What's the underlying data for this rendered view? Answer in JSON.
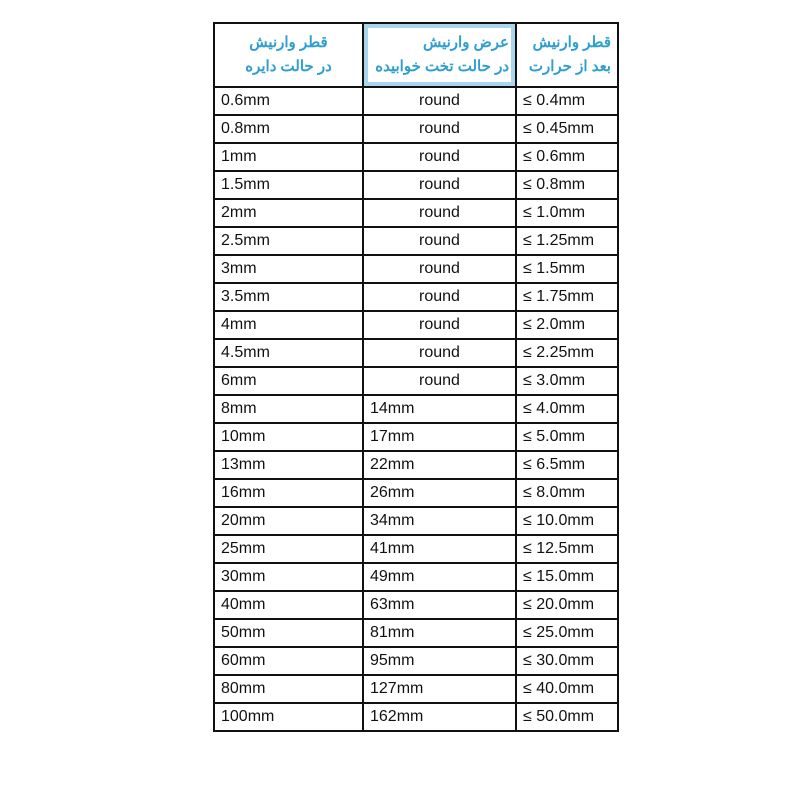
{
  "headers": [
    {
      "line1": "قطر وارنیش",
      "line2": "در حالت دایره"
    },
    {
      "line1": "عرض وارنیش",
      "line2": "در حالت تخت خوابیده"
    },
    {
      "line1": "قطر وارنیش",
      "line2": "بعد از حرارت"
    }
  ],
  "rows": [
    [
      "0.6mm",
      "round",
      "≤ 0.4mm"
    ],
    [
      "0.8mm",
      "round",
      "≤ 0.45mm"
    ],
    [
      "1mm",
      "round",
      "≤ 0.6mm"
    ],
    [
      "1.5mm",
      "round",
      "≤ 0.8mm"
    ],
    [
      "2mm",
      "round",
      "≤ 1.0mm"
    ],
    [
      "2.5mm",
      "round",
      "≤ 1.25mm"
    ],
    [
      "3mm",
      "round",
      "≤ 1.5mm"
    ],
    [
      "3.5mm",
      "round",
      "≤ 1.75mm"
    ],
    [
      "4mm",
      "round",
      "≤ 2.0mm"
    ],
    [
      "4.5mm",
      "round",
      "≤ 2.25mm"
    ],
    [
      "6mm",
      "round",
      "≤ 3.0mm"
    ],
    [
      "8mm",
      "14mm",
      "≤ 4.0mm"
    ],
    [
      "10mm",
      "17mm",
      "≤ 5.0mm"
    ],
    [
      "13mm",
      "22mm",
      "≤ 6.5mm"
    ],
    [
      "16mm",
      "26mm",
      "≤ 8.0mm"
    ],
    [
      "20mm",
      "34mm",
      "≤ 10.0mm"
    ],
    [
      "25mm",
      "41mm",
      "≤ 12.5mm"
    ],
    [
      "30mm",
      "49mm",
      "≤ 15.0mm"
    ],
    [
      "40mm",
      "63mm",
      "≤ 20.0mm"
    ],
    [
      "50mm",
      "81mm",
      "≤ 25.0mm"
    ],
    [
      "60mm",
      "95mm",
      "≤ 30.0mm"
    ],
    [
      "80mm",
      "127mm",
      "≤ 40.0mm"
    ],
    [
      "100mm",
      "162mm",
      "≤ 50.0mm"
    ]
  ],
  "colors": {
    "header_text": "#2f9fd0",
    "header_highlight": "#a9d6ec"
  }
}
